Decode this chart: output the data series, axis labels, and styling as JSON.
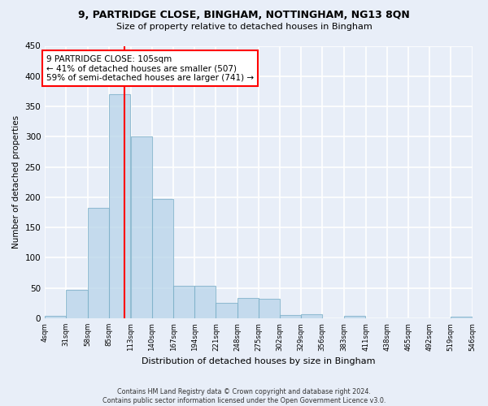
{
  "title1": "9, PARTRIDGE CLOSE, BINGHAM, NOTTINGHAM, NG13 8QN",
  "title2": "Size of property relative to detached houses in Bingham",
  "xlabel": "Distribution of detached houses by size in Bingham",
  "ylabel": "Number of detached properties",
  "footnote1": "Contains HM Land Registry data © Crown copyright and database right 2024.",
  "footnote2": "Contains public sector information licensed under the Open Government Licence v3.0.",
  "bar_edges": [
    4,
    31,
    58,
    85,
    113,
    140,
    167,
    194,
    221,
    248,
    275,
    302,
    329,
    356,
    383,
    411,
    438,
    465,
    492,
    519,
    546
  ],
  "bar_heights": [
    4,
    47,
    182,
    370,
    300,
    197,
    54,
    54,
    26,
    33,
    32,
    5,
    6,
    0,
    4,
    0,
    0,
    0,
    0,
    3
  ],
  "bar_color": "#b8d4ea",
  "bar_edge_color": "#7aaec8",
  "property_size": 105,
  "property_line_color": "red",
  "annotation_text": "9 PARTRIDGE CLOSE: 105sqm\n← 41% of detached houses are smaller (507)\n59% of semi-detached houses are larger (741) →",
  "annotation_box_color": "white",
  "annotation_box_edgecolor": "red",
  "tick_labels": [
    "4sqm",
    "31sqm",
    "58sqm",
    "85sqm",
    "113sqm",
    "140sqm",
    "167sqm",
    "194sqm",
    "221sqm",
    "248sqm",
    "275sqm",
    "302sqm",
    "329sqm",
    "356sqm",
    "383sqm",
    "411sqm",
    "438sqm",
    "465sqm",
    "492sqm",
    "519sqm",
    "546sqm"
  ],
  "yticks": [
    0,
    50,
    100,
    150,
    200,
    250,
    300,
    350,
    400,
    450
  ],
  "ylim": [
    0,
    450
  ],
  "bg_color": "#e8eef8",
  "grid_color": "white",
  "bar_alpha": 0.75
}
